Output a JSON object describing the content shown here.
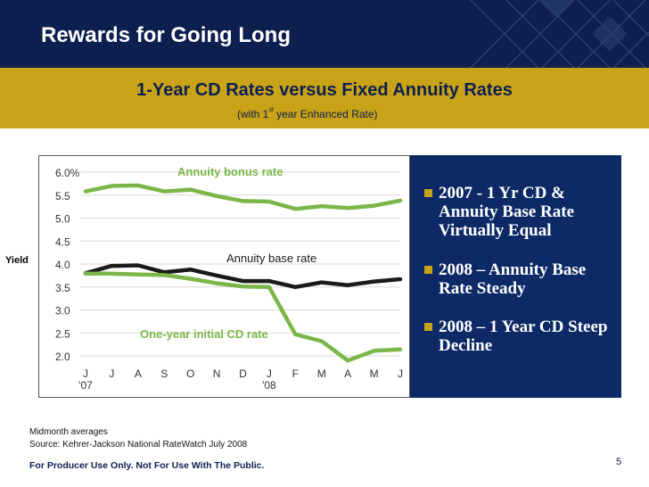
{
  "slide": {
    "title": "Rewards for Going Long",
    "subtitle": "1-Year CD Rates versus Fixed Annuity Rates",
    "note_pre": "(with 1",
    "note_sup": "st",
    "note_post": " year Enhanced Rate)",
    "yield_label": "Yield",
    "bullets": [
      "2007 - 1 Yr CD & Annuity Base Rate Virtually Equal",
      "2008 – Annuity Base Rate Steady",
      "2008 – 1 Year CD Steep Decline"
    ],
    "footnote1": "Midmonth averages",
    "footnote2": "Source:  Kehrer-Jackson National RateWatch July 2008",
    "disclaimer": "For Producer Use Only. Not For Use With The Public.",
    "page_number": "5"
  },
  "colors": {
    "navy": "#0d1f4f",
    "gold": "#c8a217",
    "green": "#7ab648",
    "black": "#1a1a1a"
  },
  "chart_data": {
    "type": "line",
    "categories": [
      "J",
      "J",
      "A",
      "S",
      "O",
      "N",
      "D",
      "J",
      "F",
      "M",
      "A",
      "M",
      "J"
    ],
    "year_labels": {
      "0": "'07",
      "7": "'08"
    },
    "ylim": [
      2.0,
      6.0
    ],
    "yticks": [
      "6.0%",
      "5.5",
      "5.0",
      "4.5",
      "4.0",
      "3.5",
      "3.0",
      "2.5",
      "2.0"
    ],
    "series": [
      {
        "name": "Annuity bonus rate",
        "color": "green",
        "values": [
          5.58,
          5.7,
          5.71,
          5.58,
          5.62,
          5.48,
          5.37,
          5.36,
          5.2,
          5.26,
          5.22,
          5.27,
          5.38
        ]
      },
      {
        "name": "Annuity base rate",
        "color": "black",
        "values": [
          3.8,
          3.96,
          3.97,
          3.82,
          3.88,
          3.75,
          3.63,
          3.63,
          3.5,
          3.6,
          3.54,
          3.62,
          3.67
        ]
      },
      {
        "name": "One-year initial CD rate",
        "color": "green",
        "values": [
          3.79,
          3.79,
          3.77,
          3.76,
          3.68,
          3.58,
          3.51,
          3.5,
          2.47,
          2.32,
          1.9,
          2.11,
          2.14
        ]
      }
    ],
    "annotations": [
      "Annuity bonus rate",
      "Annuity base rate",
      "One-year initial CD rate"
    ]
  }
}
